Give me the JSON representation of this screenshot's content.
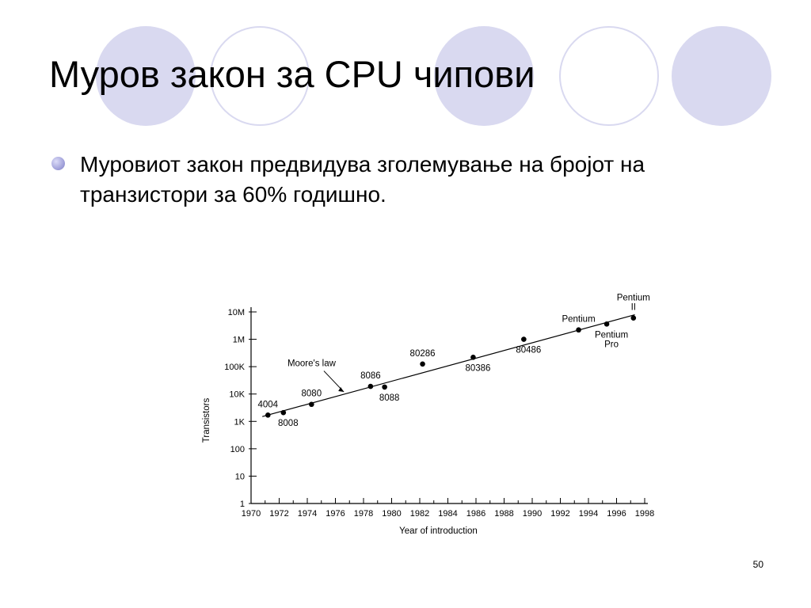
{
  "slide": {
    "title": "Муров закон за CPU чипови",
    "bullet": "Муровиот закон предвидува зголемување на бројот на транзистори за 60% годишно.",
    "page_number": "50",
    "colors": {
      "accent": "#d9d9f0",
      "bullet": "#9a9ad6",
      "text": "#000000"
    }
  },
  "chart_data": {
    "type": "scatter",
    "title": "",
    "xlabel": "Year of introduction",
    "ylabel": "Transistors",
    "xlim": [
      1970,
      1998
    ],
    "ylim": [
      1,
      10000000
    ],
    "yscale": "log",
    "x_ticks": [
      "1970",
      "1972",
      "1974",
      "1976",
      "1978",
      "1980",
      "1982",
      "1984",
      "1986",
      "1988",
      "1990",
      "1992",
      "1994",
      "1996",
      "1998"
    ],
    "y_ticks": [
      {
        "value": 1,
        "label": "1"
      },
      {
        "value": 10,
        "label": "10"
      },
      {
        "value": 100,
        "label": "100"
      },
      {
        "value": 1000,
        "label": "1K"
      },
      {
        "value": 10000,
        "label": "10K"
      },
      {
        "value": 100000,
        "label": "100K"
      },
      {
        "value": 1000000,
        "label": "1M"
      },
      {
        "value": 10000000,
        "label": "10M"
      }
    ],
    "trend_line": {
      "label": "Moore's law",
      "x": [
        1970.8,
        1997.3
      ],
      "y": [
        1500,
        7900000
      ]
    },
    "points": [
      {
        "label": "4004",
        "x": 1971.2,
        "y": 1700,
        "label_pos": "above"
      },
      {
        "label": "8008",
        "x": 1972.3,
        "y": 2100,
        "label_pos": "below"
      },
      {
        "label": "8080",
        "x": 1974.3,
        "y": 4200,
        "label_pos": "above"
      },
      {
        "label": "8086",
        "x": 1978.5,
        "y": 19000,
        "label_pos": "above"
      },
      {
        "label": "8088",
        "x": 1979.5,
        "y": 18000,
        "label_pos": "below"
      },
      {
        "label": "80286",
        "x": 1982.2,
        "y": 125000,
        "label_pos": "above"
      },
      {
        "label": "80386",
        "x": 1985.8,
        "y": 220000,
        "label_pos": "below"
      },
      {
        "label": "80486",
        "x": 1989.4,
        "y": 1000000,
        "label_pos": "below"
      },
      {
        "label": "Pentium",
        "x": 1993.3,
        "y": 2200000,
        "label_pos": "above"
      },
      {
        "label": "Pentium Pro",
        "x": 1995.3,
        "y": 3600000,
        "label_pos": "below"
      },
      {
        "label": "Pentium II",
        "x": 1997.2,
        "y": 6000000,
        "label_pos": "above"
      }
    ]
  }
}
